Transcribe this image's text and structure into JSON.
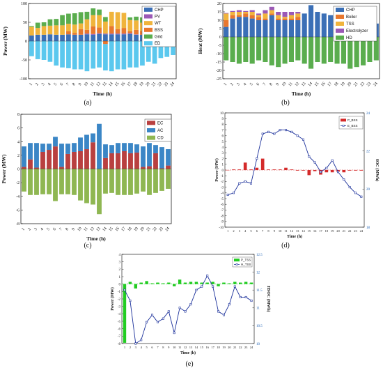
{
  "chart_data": [
    {
      "type": "bar",
      "id": "a",
      "caption": "(a)",
      "xlabel": "Time (h)",
      "ylabel": "Power (MW)",
      "ylim": [
        -100,
        100
      ],
      "yticks": [
        -100,
        -50,
        0,
        50,
        100
      ],
      "categories": [
        "1",
        "2",
        "3",
        "4",
        "5",
        "6",
        "7",
        "8",
        "9",
        "10",
        "11",
        "12",
        "13",
        "14",
        "15",
        "16",
        "17",
        "18",
        "19",
        "20",
        "21",
        "22",
        "23",
        "24"
      ],
      "legend": [
        "CHP",
        "PV",
        "WT",
        "BSS",
        "Grid",
        "ED"
      ],
      "colors": {
        "CHP": "#3b6fb6",
        "PV": "#9b59b6",
        "WT": "#f0b43c",
        "BSS": "#e8772e",
        "Grid": "#5aad4e",
        "ED": "#5bc8ee"
      },
      "series": [
        {
          "name": "CHP",
          "values": [
            15,
            17,
            17,
            18,
            17,
            17,
            18,
            17,
            17,
            18,
            17,
            19,
            18,
            18,
            18,
            18,
            19,
            17,
            17,
            17,
            18,
            18,
            17,
            17
          ]
        },
        {
          "name": "PV",
          "values": [
            0,
            0,
            0,
            0,
            0,
            0,
            0,
            0,
            0,
            2,
            2,
            2,
            2,
            2,
            2,
            2,
            2,
            1,
            0,
            0,
            0,
            0,
            0,
            0
          ]
        },
        {
          "name": "BSS",
          "values": [
            0,
            0,
            0,
            0,
            0,
            0,
            8,
            5,
            15,
            10,
            20,
            15,
            -8,
            20,
            12,
            15,
            5,
            12,
            10,
            8,
            6,
            0,
            0,
            0
          ]
        },
        {
          "name": "WT",
          "values": [
            23,
            18,
            23,
            23,
            25,
            25,
            20,
            22,
            15,
            28,
            30,
            33,
            32,
            38,
            45,
            40,
            30,
            25,
            22,
            15,
            15,
            30,
            10,
            10
          ]
        },
        {
          "name": "Grid",
          "values": [
            2,
            14,
            10,
            17,
            17,
            27,
            27,
            30,
            30,
            20,
            18,
            15,
            12,
            0,
            0,
            0,
            7,
            10,
            14,
            0,
            0,
            0,
            0,
            0
          ]
        },
        {
          "name": "ED",
          "values": [
            -40,
            -48,
            -50,
            -55,
            -65,
            -70,
            -72,
            -75,
            -75,
            -80,
            -73,
            -70,
            -70,
            -80,
            -75,
            -75,
            -70,
            -70,
            -65,
            -55,
            -60,
            -45,
            -42,
            -37
          ]
        }
      ]
    },
    {
      "type": "bar",
      "id": "b",
      "caption": "(b)",
      "xlabel": "Time (h)",
      "ylabel": "Heat (MW)",
      "ylim": [
        -25,
        20
      ],
      "yticks": [
        -25,
        -20,
        -15,
        -10,
        -5,
        0,
        5,
        10,
        15,
        20
      ],
      "categories": [
        "1",
        "2",
        "3",
        "4",
        "5",
        "6",
        "7",
        "8",
        "9",
        "10",
        "11",
        "12",
        "13",
        "14",
        "15",
        "16",
        "17",
        "18",
        "19",
        "20",
        "21",
        "22",
        "23",
        "24"
      ],
      "legend": [
        "CHP",
        "Boiler",
        "TSS",
        "Electrolyzer",
        "HD"
      ],
      "colors": {
        "CHP": "#3b6fb6",
        "Boiler": "#e8772e",
        "TSS": "#f0b43c",
        "Electrolyzer": "#9b59b6",
        "HD": "#5aad4e"
      },
      "series": [
        {
          "name": "CHP",
          "values": [
            6,
            11,
            12,
            12,
            11,
            10,
            10,
            13,
            10,
            10,
            10,
            10,
            14,
            19,
            15,
            14,
            13,
            12,
            11,
            10,
            12,
            10,
            9,
            8
          ]
        },
        {
          "name": "Boiler",
          "values": [
            4,
            2,
            1,
            2,
            2,
            2,
            1,
            1,
            1,
            1,
            1,
            2,
            0,
            0,
            0,
            0,
            0,
            0,
            0,
            0,
            0,
            0,
            0,
            0
          ]
        },
        {
          "name": "TSS",
          "values": [
            4,
            2,
            2,
            1,
            2,
            1,
            3,
            2,
            2,
            1,
            2,
            2,
            0,
            0,
            0,
            0,
            0,
            0,
            0,
            0,
            0,
            0,
            0,
            0
          ]
        },
        {
          "name": "Electrolyzer",
          "values": [
            0.3,
            0.5,
            1,
            0.5,
            1,
            1,
            2,
            2,
            2,
            3,
            2,
            1,
            0,
            0,
            0,
            0,
            0,
            0,
            0,
            0,
            0,
            0,
            0,
            0
          ]
        },
        {
          "name": "HD",
          "values": [
            -14,
            -15,
            -16,
            -15,
            -16,
            -14,
            -15,
            -17,
            -18,
            -16,
            -15,
            -14,
            -16,
            -19,
            -15,
            -16,
            -15,
            -16,
            -16,
            -19,
            -18,
            -17,
            -15,
            -14
          ]
        }
      ]
    },
    {
      "type": "bar",
      "id": "c",
      "caption": "(c)",
      "xlabel": "Time (h)",
      "ylabel": "Power (MW)",
      "ylim": [
        -8,
        8
      ],
      "yticks": [
        -8,
        -6,
        -4,
        -2,
        0,
        2,
        4,
        6,
        8
      ],
      "categories": [
        "1",
        "2",
        "3",
        "4",
        "5",
        "6",
        "7",
        "8",
        "9",
        "10",
        "11",
        "12",
        "13",
        "14",
        "15",
        "16",
        "17",
        "18",
        "19",
        "20",
        "21",
        "22",
        "23",
        "24"
      ],
      "legend": [
        "EC",
        "AC",
        "CD"
      ],
      "colors": {
        "EC": "#b94040",
        "AC": "#3b86c6",
        "CD": "#8fb752"
      },
      "series": [
        {
          "name": "EC",
          "values": [
            0.3,
            1.4,
            0.2,
            2.5,
            2.8,
            3.3,
            0.3,
            2.2,
            2.5,
            2.6,
            2.9,
            3.9,
            0,
            1.6,
            2.3,
            2.3,
            2.6,
            2.3,
            2.4,
            0.3,
            0.4,
            2.3,
            0.1,
            0.5
          ]
        },
        {
          "name": "AC",
          "values": [
            3.0,
            2.4,
            3.6,
            1.2,
            0.9,
            1.4,
            3.4,
            1.5,
            1.3,
            2.0,
            2.1,
            1.3,
            6.6,
            2.0,
            1.2,
            1.5,
            1.2,
            1.5,
            1.2,
            3.0,
            3.4,
            1.2,
            3.1,
            2.4
          ]
        },
        {
          "name": "CD",
          "values": [
            -3.3,
            -3.8,
            -3.8,
            -3.7,
            -3.7,
            -4.7,
            -3.7,
            -3.7,
            -3.8,
            -4.6,
            -5.0,
            -5.2,
            -6.6,
            -3.6,
            -3.5,
            -3.8,
            -3.8,
            -3.8,
            -3.6,
            -3.3,
            -3.8,
            -3.5,
            -3.2,
            -2.9
          ]
        }
      ]
    },
    {
      "type": "bar+line",
      "id": "d",
      "caption": "(d)",
      "xlabel": "Time (h)",
      "ylabel": "Power (MW)",
      "y2label": "SOC (MWh)",
      "ylim": [
        -10,
        10
      ],
      "yticks": [
        -10,
        -9,
        -8,
        -7,
        -6,
        -5,
        -4,
        -3,
        -2,
        -1,
        0,
        1,
        2,
        3,
        4,
        5,
        6,
        7,
        8,
        9,
        10
      ],
      "y2lim": [
        18,
        24
      ],
      "y2ticks": [
        18,
        20,
        22,
        24
      ],
      "categories": [
        "1",
        "2",
        "3",
        "4",
        "5",
        "6",
        "7",
        "8",
        "9",
        "10",
        "11",
        "12",
        "13",
        "14",
        "15",
        "16",
        "17",
        "18",
        "19",
        "20",
        "21",
        "22",
        "23",
        "24"
      ],
      "legend": [
        "P_BSS",
        "E_BSS"
      ],
      "colors": {
        "bar": "#d42a2a",
        "line": "#1a2f9a"
      },
      "bars": [
        0,
        0.1,
        0.1,
        1.3,
        0.1,
        0.4,
        2.0,
        0.1,
        0.1,
        0.1,
        0.4,
        0.1,
        -0.1,
        -0.1,
        -0.9,
        -0.2,
        -0.8,
        -0.4,
        -0.4,
        -0.3,
        -0.4,
        -0.1,
        -0.1,
        -0.1
      ],
      "line": [
        19.7,
        19.8,
        20.3,
        20.4,
        20.3,
        21.6,
        22.9,
        23.0,
        22.9,
        23.1,
        23.1,
        23.0,
        22.8,
        22.6,
        21.7,
        21.4,
        20.9,
        21.1,
        21.5,
        20.9,
        20.5,
        20.1,
        19.8,
        19.6
      ]
    },
    {
      "type": "bar+line",
      "id": "e",
      "caption": "(e)",
      "xlabel": "Time (h)",
      "ylabel": "Power (MW)",
      "y2label": "HSOC (MWh)",
      "ylim": [
        -8,
        4
      ],
      "yticks": [
        -8,
        -7,
        -6,
        -5,
        -4,
        -3,
        -2,
        -1,
        0,
        1,
        2,
        3,
        4
      ],
      "y2lim": [
        10,
        12.5
      ],
      "y2ticks": [
        10,
        10.5,
        11,
        11.5,
        12,
        12.5
      ],
      "categories": [
        "1",
        "2",
        "3",
        "4",
        "5",
        "6",
        "7",
        "8",
        "9",
        "10",
        "11",
        "12",
        "13",
        "14",
        "15",
        "16",
        "17",
        "18",
        "19",
        "20",
        "21",
        "22",
        "23",
        "24"
      ],
      "legend": [
        "P_TSS",
        "H_TSS"
      ],
      "colors": {
        "bar": "#22cc22",
        "line": "#1a2f9a"
      },
      "bars": [
        -7.9,
        0.3,
        -0.6,
        0.2,
        0.4,
        0.1,
        0.2,
        0.1,
        0.2,
        -0.3,
        0.6,
        0.2,
        0.3,
        0.3,
        0.2,
        0.2,
        0.3,
        -0.3,
        0.2,
        0.1,
        0.3,
        0.2,
        0.3,
        0.2
      ],
      "line": [
        11.5,
        11.2,
        10.0,
        10.1,
        10.6,
        10.8,
        10.6,
        10.7,
        10.9,
        10.3,
        11.0,
        10.9,
        11.1,
        11.5,
        11.6,
        11.9,
        11.6,
        10.9,
        10.8,
        11.1,
        11.6,
        11.3,
        11.3,
        11.2
      ]
    }
  ]
}
